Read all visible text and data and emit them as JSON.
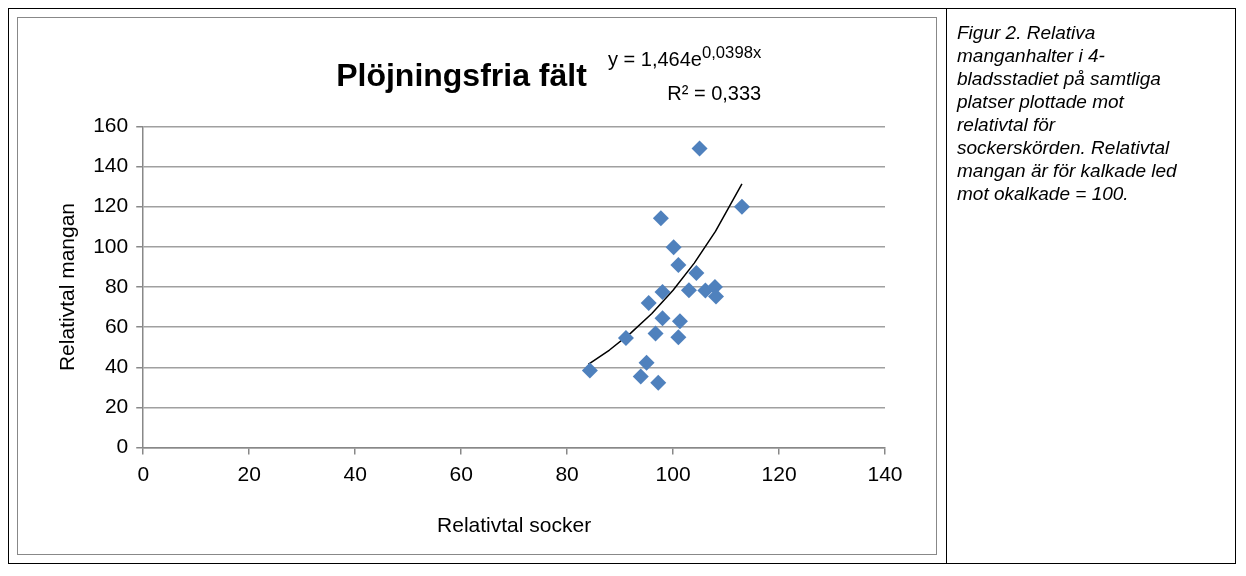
{
  "chart_data": {
    "type": "scatter",
    "title": "Plöjningsfria fält",
    "xlabel": "Relativtal socker",
    "ylabel": "Relativtal mangan",
    "annotations": [
      "y = 1,464e$^{0,0398x}$",
      "R² = 0,333",
      "Figur 2. Relativa manganhalter i 4-bladsstadiet på samtliga platser plottade mot relativtal för sockerskörden. Relativtal mangan är för kalkade led mot okalkade = 100."
    ],
    "series": [
      {
        "color": "#4f81bd",
        "marker": "diamond",
        "x": [
          84.3,
          91.1,
          93.9,
          95,
          97.2,
          95.4,
          98,
          98,
          96.7,
          101.3,
          101,
          97.7,
          100.1,
          101,
          104.4,
          103,
          106.1,
          107.9,
          108.1,
          105,
          113
        ],
        "values": [
          38.4,
          54.6,
          35.4,
          42.3,
          32.3,
          72,
          77.5,
          64.4,
          56.8,
          63,
          55,
          114.2,
          99.8,
          91,
          87,
          78.4,
          78.2,
          80,
          75.3,
          149,
          120
        ]
      },
      {
        "type": "line",
        "color": "#000000",
        "marker": "none",
        "x": [
          84,
          88,
          92,
          96,
          100,
          104,
          108,
          113
        ],
        "values": [
          41.4,
          48.6,
          57.0,
          66.8,
          78.4,
          91.9,
          107.7,
          131.4
        ]
      }
    ],
    "xlim": [
      0,
      140
    ],
    "xticks": [
      0,
      20,
      40,
      60,
      80,
      100,
      120,
      140
    ],
    "ylim": [
      0,
      160
    ],
    "yticks": [
      0,
      20,
      40,
      60,
      80,
      100,
      120,
      140,
      160
    ],
    "grid": "y",
    "legend": false
  }
}
